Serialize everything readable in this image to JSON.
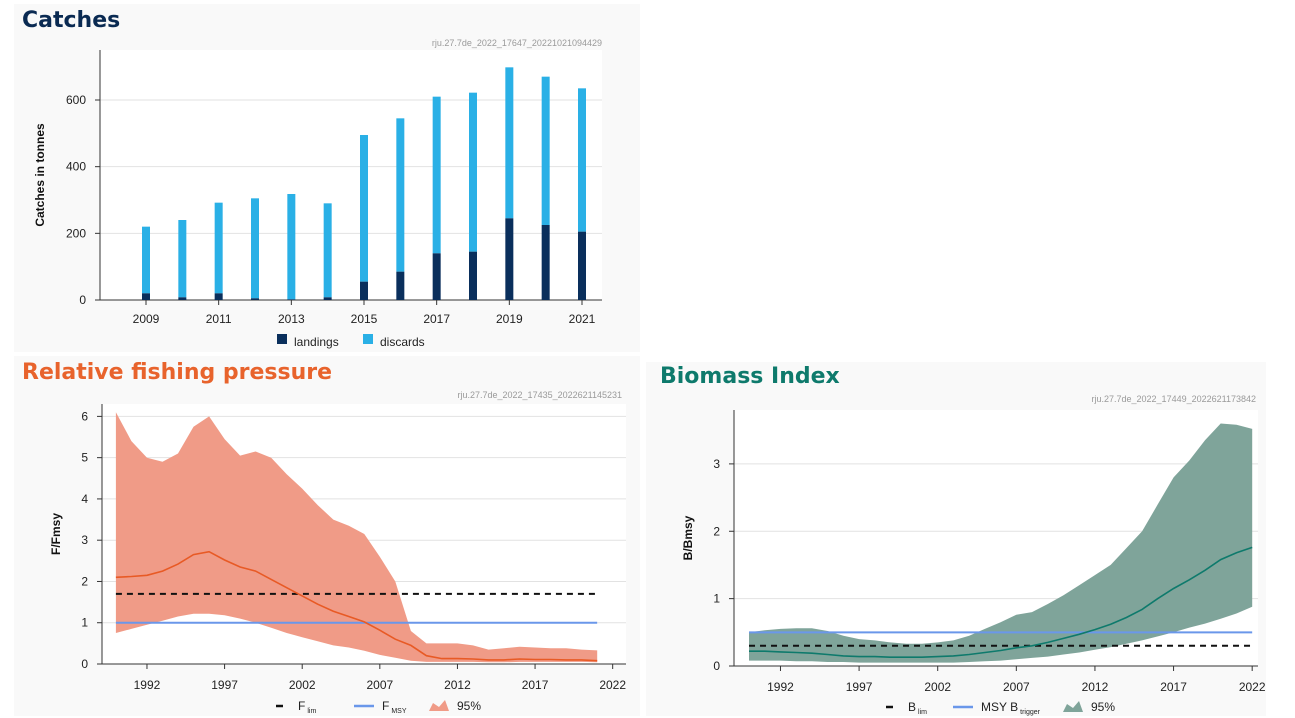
{
  "colors": {
    "landings": "#0a2f5c",
    "discards": "#2ab0e6",
    "pressure_title": "#e8632c",
    "pressure_band": "#f09b87",
    "pressure_line": "#e85a25",
    "fmsy_line": "#6a97ea",
    "biomass_title": "#0e7a6c",
    "biomass_band": "#7fa49a",
    "biomass_line": "#0e7a6c",
    "catches_title": "#0a2a52"
  },
  "chart_data": [
    {
      "id": "catches",
      "type": "bar",
      "stacked": true,
      "title": "Catches",
      "chart_id": "rju.27.7de_2022_17647_20221021094429",
      "ylabel": "Catches in tonnes",
      "ylim": [
        0,
        750
      ],
      "yticks": [
        0,
        200,
        400,
        600
      ],
      "xticks": [
        "2009",
        "2011",
        "2013",
        "2015",
        "2017",
        "2019",
        "2021"
      ],
      "categories": [
        "2009",
        "2010",
        "2011",
        "2012",
        "2013",
        "2014",
        "2015",
        "2016",
        "2017",
        "2018",
        "2019",
        "2020",
        "2021"
      ],
      "series": [
        {
          "name": "landings",
          "values": [
            20,
            8,
            20,
            5,
            2,
            8,
            55,
            85,
            140,
            145,
            245,
            225,
            205
          ]
        },
        {
          "name": "discards",
          "values": [
            200,
            232,
            272,
            300,
            316,
            282,
            440,
            460,
            470,
            477,
            453,
            445,
            430
          ]
        }
      ],
      "legend_position": "bottom",
      "grid": true
    },
    {
      "id": "pressure",
      "type": "line",
      "title": "Relative fishing pressure",
      "chart_id": "rju.27.7de_2022_17435_2022621145231",
      "ylabel": "F/Fmsy",
      "xlim": [
        1989,
        2023
      ],
      "ylim": [
        0,
        6.3
      ],
      "yticks": [
        0,
        1,
        2,
        3,
        4,
        5,
        6
      ],
      "xticks": [
        1992,
        1997,
        2002,
        2007,
        2012,
        2017,
        2022
      ],
      "x": [
        1990,
        1991,
        1992,
        1993,
        1994,
        1995,
        1996,
        1997,
        1998,
        1999,
        2000,
        2001,
        2002,
        2003,
        2004,
        2005,
        2006,
        2007,
        2008,
        2009,
        2010,
        2011,
        2012,
        2013,
        2014,
        2015,
        2016,
        2017,
        2018,
        2019,
        2020,
        2021
      ],
      "series": [
        {
          "role": "estimate",
          "values": [
            2.1,
            2.12,
            2.15,
            2.25,
            2.42,
            2.65,
            2.72,
            2.52,
            2.35,
            2.25,
            2.05,
            1.85,
            1.65,
            1.45,
            1.28,
            1.15,
            1.02,
            0.82,
            0.6,
            0.45,
            0.2,
            0.13,
            0.13,
            0.12,
            0.1,
            0.1,
            0.12,
            0.11,
            0.11,
            0.1,
            0.1,
            0.08
          ]
        },
        {
          "role": "upper",
          "values": [
            6.1,
            5.4,
            5.0,
            4.9,
            5.1,
            5.75,
            6.0,
            5.45,
            5.05,
            5.15,
            5.0,
            4.6,
            4.25,
            3.85,
            3.5,
            3.35,
            3.15,
            2.6,
            2.0,
            0.8,
            0.5,
            0.5,
            0.5,
            0.45,
            0.35,
            0.38,
            0.42,
            0.4,
            0.38,
            0.38,
            0.35,
            0.33
          ]
        },
        {
          "role": "lower",
          "values": [
            0.75,
            0.85,
            0.95,
            1.05,
            1.15,
            1.22,
            1.22,
            1.18,
            1.1,
            1.0,
            0.88,
            0.75,
            0.65,
            0.55,
            0.45,
            0.4,
            0.32,
            0.22,
            0.15,
            0.08,
            0.05,
            0.05,
            0.05,
            0.05,
            0.04,
            0.04,
            0.05,
            0.05,
            0.05,
            0.05,
            0.05,
            0.04
          ]
        }
      ],
      "lines": [
        {
          "name": "Flim",
          "value": 1.7
        },
        {
          "name": "FMSY",
          "value": 1.0
        }
      ],
      "legend": [
        {
          "main": "F",
          "sub": "lim"
        },
        {
          "main": "F",
          "sub": "MSY"
        },
        {
          "main": "95%",
          "sub": ""
        }
      ],
      "legend_position": "bottom",
      "grid": true
    },
    {
      "id": "biomass",
      "type": "line",
      "title": "Biomass Index",
      "chart_id": "rju.27.7de_2022_17449_2022621173842",
      "ylabel": "B/Bmsy",
      "xlim": [
        1989,
        2023
      ],
      "ylim": [
        0,
        3.8
      ],
      "yticks": [
        0,
        1,
        2,
        3
      ],
      "xticks": [
        1992,
        1997,
        2002,
        2007,
        2012,
        2017,
        2022
      ],
      "x": [
        1990,
        1991,
        1992,
        1993,
        1994,
        1995,
        1996,
        1997,
        1998,
        1999,
        2000,
        2001,
        2002,
        2003,
        2004,
        2005,
        2006,
        2007,
        2008,
        2009,
        2010,
        2011,
        2012,
        2013,
        2014,
        2015,
        2016,
        2017,
        2018,
        2019,
        2020,
        2021,
        2022
      ],
      "series": [
        {
          "role": "estimate",
          "values": [
            0.22,
            0.22,
            0.21,
            0.2,
            0.19,
            0.17,
            0.15,
            0.14,
            0.14,
            0.13,
            0.13,
            0.13,
            0.14,
            0.15,
            0.17,
            0.2,
            0.23,
            0.27,
            0.3,
            0.35,
            0.41,
            0.47,
            0.54,
            0.62,
            0.72,
            0.84,
            1.0,
            1.15,
            1.28,
            1.42,
            1.58,
            1.68,
            1.76
          ]
        },
        {
          "role": "upper",
          "values": [
            0.5,
            0.53,
            0.55,
            0.56,
            0.56,
            0.52,
            0.45,
            0.4,
            0.38,
            0.35,
            0.33,
            0.33,
            0.35,
            0.38,
            0.45,
            0.55,
            0.65,
            0.76,
            0.8,
            0.92,
            1.05,
            1.2,
            1.35,
            1.5,
            1.75,
            2.0,
            2.4,
            2.8,
            3.05,
            3.35,
            3.6,
            3.58,
            3.52
          ]
        },
        {
          "role": "lower",
          "values": [
            0.08,
            0.08,
            0.08,
            0.07,
            0.07,
            0.06,
            0.06,
            0.05,
            0.05,
            0.05,
            0.05,
            0.05,
            0.05,
            0.05,
            0.06,
            0.07,
            0.08,
            0.1,
            0.12,
            0.14,
            0.17,
            0.2,
            0.24,
            0.28,
            0.33,
            0.38,
            0.44,
            0.5,
            0.57,
            0.63,
            0.7,
            0.78,
            0.88
          ]
        }
      ],
      "lines": [
        {
          "name": "Blim",
          "value": 0.3
        },
        {
          "name": "MSY Btrigger",
          "value": 0.5
        }
      ],
      "legend": [
        {
          "main": "B",
          "sub": "lim"
        },
        {
          "main": "MSY B",
          "sub": "trigger"
        },
        {
          "main": "95%",
          "sub": ""
        }
      ],
      "legend_position": "bottom",
      "grid": true
    }
  ]
}
